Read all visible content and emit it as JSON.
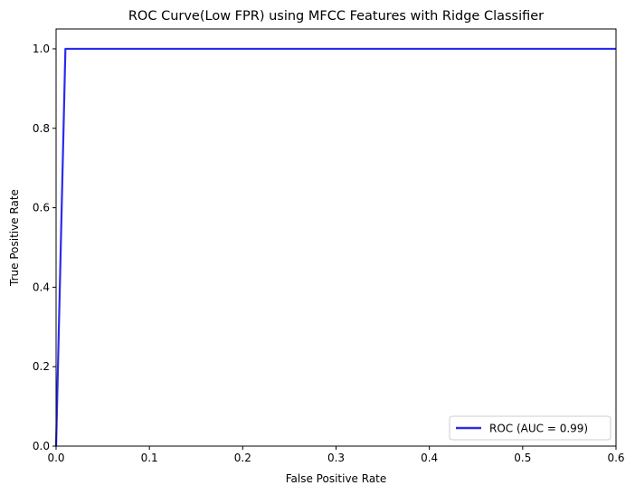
{
  "chart_data": {
    "type": "line",
    "title": "ROC Curve(Low FPR) using MFCC Features with Ridge Classifier",
    "xlabel": "False Positive Rate",
    "ylabel": "True Positive Rate",
    "xlim": [
      0,
      0.6
    ],
    "ylim": [
      0,
      1.05
    ],
    "xticks": [
      0.0,
      0.1,
      0.2,
      0.3,
      0.4,
      0.5,
      0.6
    ],
    "xtick_labels": [
      "0.0",
      "0.1",
      "0.2",
      "0.3",
      "0.4",
      "0.5",
      "0.6"
    ],
    "yticks": [
      0.0,
      0.2,
      0.4,
      0.6,
      0.8,
      1.0
    ],
    "ytick_labels": [
      "0.0",
      "0.2",
      "0.4",
      "0.6",
      "0.8",
      "1.0"
    ],
    "grid": false,
    "legend_position": "lower-right",
    "series": [
      {
        "name": "ROC (AUC = 0.99)",
        "color": "#2b2bf0",
        "x": [
          0.0,
          0.01,
          0.6
        ],
        "y": [
          0.0,
          1.0,
          1.0
        ]
      }
    ]
  }
}
